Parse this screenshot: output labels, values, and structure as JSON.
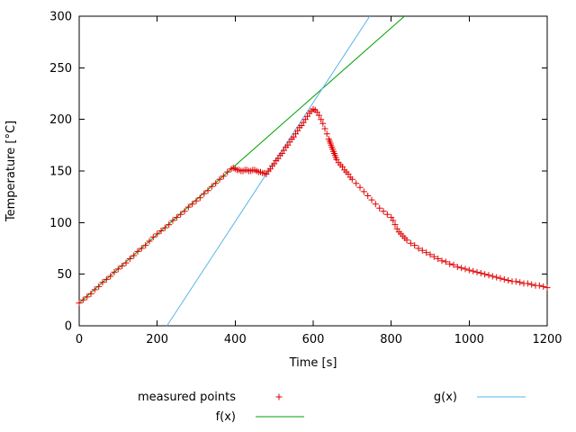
{
  "chart_data": {
    "type": "scatter",
    "title": "",
    "xlabel": "Time [s]",
    "ylabel": "Temperature [°C]",
    "xlim": [
      0,
      1200
    ],
    "ylim": [
      0,
      300
    ],
    "xticks": [
      0,
      200,
      400,
      600,
      800,
      1000,
      1200
    ],
    "yticks": [
      0,
      50,
      100,
      150,
      200,
      250,
      300
    ],
    "grid": false,
    "legend_position": "below plot, two columns",
    "axis_color": "#000000",
    "series": [
      {
        "name": "measured points",
        "type": "points",
        "marker": "plus",
        "color": "#e00000",
        "points": [
          [
            0,
            22
          ],
          [
            10,
            25
          ],
          [
            20,
            28
          ],
          [
            30,
            31
          ],
          [
            40,
            35
          ],
          [
            50,
            38
          ],
          [
            60,
            42
          ],
          [
            70,
            45
          ],
          [
            80,
            48
          ],
          [
            90,
            52
          ],
          [
            100,
            55
          ],
          [
            110,
            58
          ],
          [
            120,
            61
          ],
          [
            130,
            65
          ],
          [
            140,
            68
          ],
          [
            150,
            72
          ],
          [
            160,
            75
          ],
          [
            170,
            78
          ],
          [
            180,
            82
          ],
          [
            190,
            86
          ],
          [
            200,
            89
          ],
          [
            210,
            92
          ],
          [
            220,
            95
          ],
          [
            230,
            98
          ],
          [
            240,
            102
          ],
          [
            250,
            105
          ],
          [
            260,
            108
          ],
          [
            270,
            111
          ],
          [
            280,
            115
          ],
          [
            290,
            118
          ],
          [
            300,
            121
          ],
          [
            310,
            124
          ],
          [
            320,
            128
          ],
          [
            330,
            131
          ],
          [
            340,
            135
          ],
          [
            350,
            138
          ],
          [
            360,
            142
          ],
          [
            370,
            145
          ],
          [
            380,
            149
          ],
          [
            390,
            152
          ],
          [
            395,
            153
          ],
          [
            400,
            152
          ],
          [
            405,
            151
          ],
          [
            410,
            151
          ],
          [
            415,
            150
          ],
          [
            420,
            150
          ],
          [
            425,
            151
          ],
          [
            430,
            151
          ],
          [
            435,
            150
          ],
          [
            440,
            150
          ],
          [
            445,
            151
          ],
          [
            450,
            151
          ],
          [
            455,
            150
          ],
          [
            460,
            149
          ],
          [
            465,
            149
          ],
          [
            470,
            148
          ],
          [
            475,
            148
          ],
          [
            480,
            147
          ],
          [
            485,
            150
          ],
          [
            490,
            152
          ],
          [
            495,
            155
          ],
          [
            500,
            157
          ],
          [
            505,
            160
          ],
          [
            510,
            162
          ],
          [
            515,
            165
          ],
          [
            520,
            167
          ],
          [
            525,
            170
          ],
          [
            530,
            173
          ],
          [
            535,
            175
          ],
          [
            540,
            178
          ],
          [
            545,
            181
          ],
          [
            550,
            183
          ],
          [
            555,
            186
          ],
          [
            560,
            189
          ],
          [
            565,
            192
          ],
          [
            570,
            194
          ],
          [
            575,
            197
          ],
          [
            580,
            200
          ],
          [
            585,
            203
          ],
          [
            590,
            206
          ],
          [
            595,
            208
          ],
          [
            600,
            210
          ],
          [
            605,
            209
          ],
          [
            610,
            207
          ],
          [
            615,
            204
          ],
          [
            620,
            200
          ],
          [
            625,
            196
          ],
          [
            630,
            191
          ],
          [
            635,
            186
          ],
          [
            640,
            181
          ],
          [
            642,
            179
          ],
          [
            644,
            177
          ],
          [
            646,
            175
          ],
          [
            648,
            173
          ],
          [
            650,
            171
          ],
          [
            652,
            169
          ],
          [
            654,
            167
          ],
          [
            656,
            165
          ],
          [
            658,
            163
          ],
          [
            660,
            161
          ],
          [
            665,
            158
          ],
          [
            670,
            156
          ],
          [
            675,
            154
          ],
          [
            680,
            151
          ],
          [
            685,
            149
          ],
          [
            690,
            147
          ],
          [
            695,
            144
          ],
          [
            700,
            142
          ],
          [
            710,
            138
          ],
          [
            720,
            134
          ],
          [
            730,
            130
          ],
          [
            740,
            126
          ],
          [
            750,
            122
          ],
          [
            760,
            118
          ],
          [
            770,
            114
          ],
          [
            780,
            111
          ],
          [
            790,
            108
          ],
          [
            800,
            105
          ],
          [
            805,
            102
          ],
          [
            810,
            98
          ],
          [
            815,
            94
          ],
          [
            820,
            91
          ],
          [
            825,
            89
          ],
          [
            830,
            87
          ],
          [
            835,
            85
          ],
          [
            840,
            83
          ],
          [
            850,
            80
          ],
          [
            860,
            78
          ],
          [
            870,
            75
          ],
          [
            880,
            73
          ],
          [
            890,
            71
          ],
          [
            900,
            69
          ],
          [
            910,
            67
          ],
          [
            920,
            65
          ],
          [
            930,
            63
          ],
          [
            940,
            62
          ],
          [
            950,
            60
          ],
          [
            960,
            59
          ],
          [
            970,
            57
          ],
          [
            980,
            56
          ],
          [
            990,
            55
          ],
          [
            1000,
            54
          ],
          [
            1010,
            53
          ],
          [
            1020,
            52
          ],
          [
            1030,
            51
          ],
          [
            1040,
            50
          ],
          [
            1050,
            49
          ],
          [
            1060,
            48
          ],
          [
            1070,
            47
          ],
          [
            1080,
            46
          ],
          [
            1090,
            45
          ],
          [
            1100,
            44
          ],
          [
            1110,
            43
          ],
          [
            1120,
            43
          ],
          [
            1130,
            42
          ],
          [
            1140,
            41
          ],
          [
            1150,
            41
          ],
          [
            1160,
            40
          ],
          [
            1170,
            39
          ],
          [
            1180,
            39
          ],
          [
            1190,
            38
          ],
          [
            1200,
            37
          ]
        ]
      },
      {
        "name": "f(x)",
        "type": "line",
        "color": "#00a000",
        "p1": [
          0,
          22
        ],
        "p2": [
          834,
          300
        ]
      },
      {
        "name": "g(x)",
        "type": "line",
        "color": "#56b4e9",
        "p1": [
          225,
          0
        ],
        "p2": [
          745,
          300
        ]
      }
    ]
  }
}
